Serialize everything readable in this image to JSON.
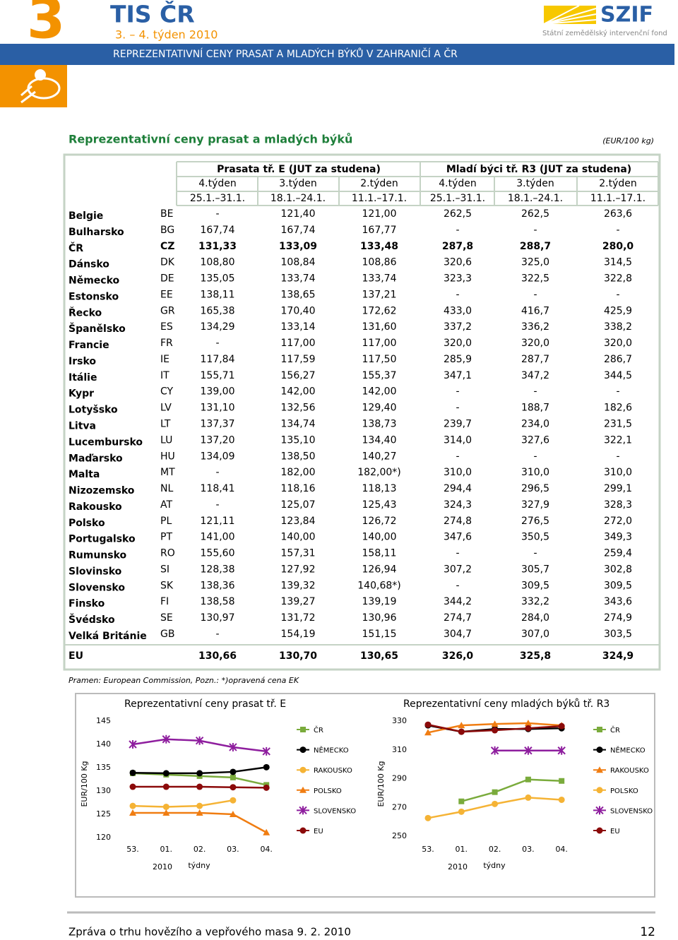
{
  "header": {
    "number": "3",
    "brand": "TIS ČR",
    "week": "3. – 4. týden 2010",
    "banner": "REPREZENTATIVNÍ CENY PRASAT A MLADÝCH BÝKŮ  V ZAHRANIČÍ  A  ČR",
    "logo": "SZIF",
    "logo_sub": "Státní zemědělský intervenční fond"
  },
  "title": "Reprezentativní ceny prasat a mladých býků",
  "unit": "(EUR/100 kg)",
  "table": {
    "groups": [
      "Prasata  tř. E  (JUT za studena)",
      "Mladí býci  tř. R3 (JUT za studena)"
    ],
    "weeks": [
      "4.týden",
      "3.týden",
      "2.týden",
      "4.týden",
      "3.týden",
      "2.týden"
    ],
    "dates": [
      "25.1.–31.1.",
      "18.1.–24.1.",
      "11.1.–17.1.",
      "25.1.–31.1.",
      "18.1.–24.1.",
      "11.1.–17.1."
    ],
    "rows": [
      [
        "Belgie",
        "BE",
        "-",
        "121,40",
        "121,00",
        "262,5",
        "262,5",
        "263,6"
      ],
      [
        "Bulharsko",
        "BG",
        "167,74",
        "167,74",
        "167,77",
        "-",
        "-",
        "-"
      ],
      [
        "ČR",
        "CZ",
        "131,33",
        "133,09",
        "133,48",
        "287,8",
        "288,7",
        "280,0"
      ],
      [
        "Dánsko",
        "DK",
        "108,80",
        "108,84",
        "108,86",
        "320,6",
        "325,0",
        "314,5"
      ],
      [
        "Německo",
        "DE",
        "135,05",
        "133,74",
        "133,74",
        "323,3",
        "322,5",
        "322,8"
      ],
      [
        "Estonsko",
        "EE",
        "138,11",
        "138,65",
        "137,21",
        "-",
        "-",
        "-"
      ],
      [
        "Řecko",
        "GR",
        "165,38",
        "170,40",
        "172,62",
        "433,0",
        "416,7",
        "425,9"
      ],
      [
        "Španělsko",
        "ES",
        "134,29",
        "133,14",
        "131,60",
        "337,2",
        "336,2",
        "338,2"
      ],
      [
        "Francie",
        "FR",
        "-",
        "117,00",
        "117,00",
        "320,0",
        "320,0",
        "320,0"
      ],
      [
        "Irsko",
        "IE",
        "117,84",
        "117,59",
        "117,50",
        "285,9",
        "287,7",
        "286,7"
      ],
      [
        "Itálie",
        "IT",
        "155,71",
        "156,27",
        "155,37",
        "347,1",
        "347,2",
        "344,5"
      ],
      [
        "Kypr",
        "CY",
        "139,00",
        "142,00",
        "142,00",
        "-",
        "-",
        "-"
      ],
      [
        "Lotyšsko",
        "LV",
        "131,10",
        "132,56",
        "129,40",
        "-",
        "188,7",
        "182,6"
      ],
      [
        "Litva",
        "LT",
        "137,37",
        "134,74",
        "138,73",
        "239,7",
        "234,0",
        "231,5"
      ],
      [
        "Lucembursko",
        "LU",
        "137,20",
        "135,10",
        "134,40",
        "314,0",
        "327,6",
        "322,1"
      ],
      [
        "Maďarsko",
        "HU",
        "134,09",
        "138,50",
        "140,27",
        "-",
        "-",
        "-"
      ],
      [
        "Malta",
        "MT",
        "-",
        "182,00",
        "182,00*)",
        "310,0",
        "310,0",
        "310,0"
      ],
      [
        "Nizozemsko",
        "NL",
        "118,41",
        "118,16",
        "118,13",
        "294,4",
        "296,5",
        "299,1"
      ],
      [
        "Rakousko",
        "AT",
        "-",
        "125,07",
        "125,43",
        "324,3",
        "327,9",
        "328,3"
      ],
      [
        "Polsko",
        "PL",
        "121,11",
        "123,84",
        "126,72",
        "274,8",
        "276,5",
        "272,0"
      ],
      [
        "Portugalsko",
        "PT",
        "141,00",
        "140,00",
        "140,00",
        "347,6",
        "350,5",
        "349,3"
      ],
      [
        "Rumunsko",
        "RO",
        "155,60",
        "157,31",
        "158,11",
        "-",
        "-",
        "259,4"
      ],
      [
        "Slovinsko",
        "SI",
        "128,38",
        "127,92",
        "126,94",
        "307,2",
        "305,7",
        "302,8"
      ],
      [
        "Slovensko",
        "SK",
        "138,36",
        "139,32",
        "140,68*)",
        "-",
        "309,5",
        "309,5"
      ],
      [
        "Finsko",
        "FI",
        "138,58",
        "139,27",
        "139,19",
        "344,2",
        "332,2",
        "343,6"
      ],
      [
        "Švédsko",
        "SE",
        "130,97",
        "131,72",
        "130,96",
        "274,7",
        "284,0",
        "274,9"
      ],
      [
        "Velká Británie",
        "GB",
        "-",
        "154,19",
        "151,15",
        "304,7",
        "307,0",
        "303,5"
      ]
    ],
    "total": [
      "EU",
      "130,66",
      "130,70",
      "130,65",
      "326,0",
      "325,8",
      "324,9"
    ]
  },
  "source": "Pramen: European Commission, Pozn.: *)opravená cena EK",
  "charts": [
    {
      "type": "line",
      "title": "Reprezentativní ceny prasat tř. E",
      "ylabel": "EUR/100 Kg",
      "xlabel": "týdny",
      "year": "2010",
      "categories": [
        "53.",
        "01.",
        "02.",
        "03.",
        "04."
      ],
      "ylim": [
        120,
        145
      ],
      "yticks": [
        145,
        140,
        135,
        130,
        125,
        120
      ],
      "series": [
        {
          "name": "ČR",
          "color": "#7aab3c",
          "marker": "square",
          "values": [
            133.8,
            133.5,
            133.2,
            132.9,
            131.3
          ]
        },
        {
          "name": "NĚMECKO",
          "color": "#000000",
          "marker": "circle",
          "values": [
            133.9,
            133.8,
            133.8,
            134.1,
            135.1
          ]
        },
        {
          "name": "RAKOUSKO",
          "color": "#f5b335",
          "marker": "circle",
          "values": [
            126.8,
            126.6,
            126.8,
            128.0,
            null
          ]
        },
        {
          "name": "POLSKO",
          "color": "#f07d12",
          "marker": "triangle",
          "values": [
            125.3,
            125.3,
            125.3,
            125.0,
            121.1
          ]
        },
        {
          "name": "SLOVENSKO",
          "color": "#8e1e9e",
          "marker": "star",
          "values": [
            140.0,
            141.1,
            140.8,
            139.4,
            138.5
          ]
        },
        {
          "name": "EU",
          "color": "#8b0a0a",
          "marker": "circle",
          "values": [
            130.9,
            130.9,
            130.9,
            130.8,
            130.7
          ]
        }
      ]
    },
    {
      "type": "line",
      "title": "Reprezentativní ceny mladých býků tř. R3",
      "ylabel": "EUR/100 Kg",
      "xlabel": "týdny",
      "year": "2010",
      "categories": [
        "53.",
        "01.",
        "02.",
        "03.",
        "04."
      ],
      "ylim": [
        250,
        330
      ],
      "yticks": [
        330,
        310,
        290,
        270,
        250
      ],
      "series": [
        {
          "name": "ČR",
          "color": "#7aab3c",
          "marker": "square",
          "values": [
            null,
            274.2,
            280.6,
            289.4,
            288.4
          ]
        },
        {
          "name": "NĚMECKO",
          "color": "#000000",
          "marker": "circle",
          "values": [
            327.0,
            322.6,
            324.5,
            324.5,
            325.0
          ]
        },
        {
          "name": "RAKOUSKO",
          "color": "#f07d12",
          "marker": "triangle",
          "values": [
            322.0,
            327.0,
            328.0,
            328.5,
            327.0
          ]
        },
        {
          "name": "POLSKO",
          "color": "#f5b335",
          "marker": "circle",
          "values": [
            262.6,
            267.0,
            272.4,
            276.8,
            275.3
          ]
        },
        {
          "name": "SLOVENSKO",
          "color": "#8e1e9e",
          "marker": "star",
          "values": [
            null,
            null,
            309.5,
            309.5,
            309.5
          ]
        },
        {
          "name": "EU",
          "color": "#8b0a0a",
          "marker": "circle",
          "values": [
            327.5,
            322.6,
            323.6,
            325.0,
            326.5
          ]
        }
      ]
    }
  ],
  "footer": {
    "text": "Zpráva o trhu hovězího a vepřového masa  9. 2. 2010",
    "page": "12"
  }
}
